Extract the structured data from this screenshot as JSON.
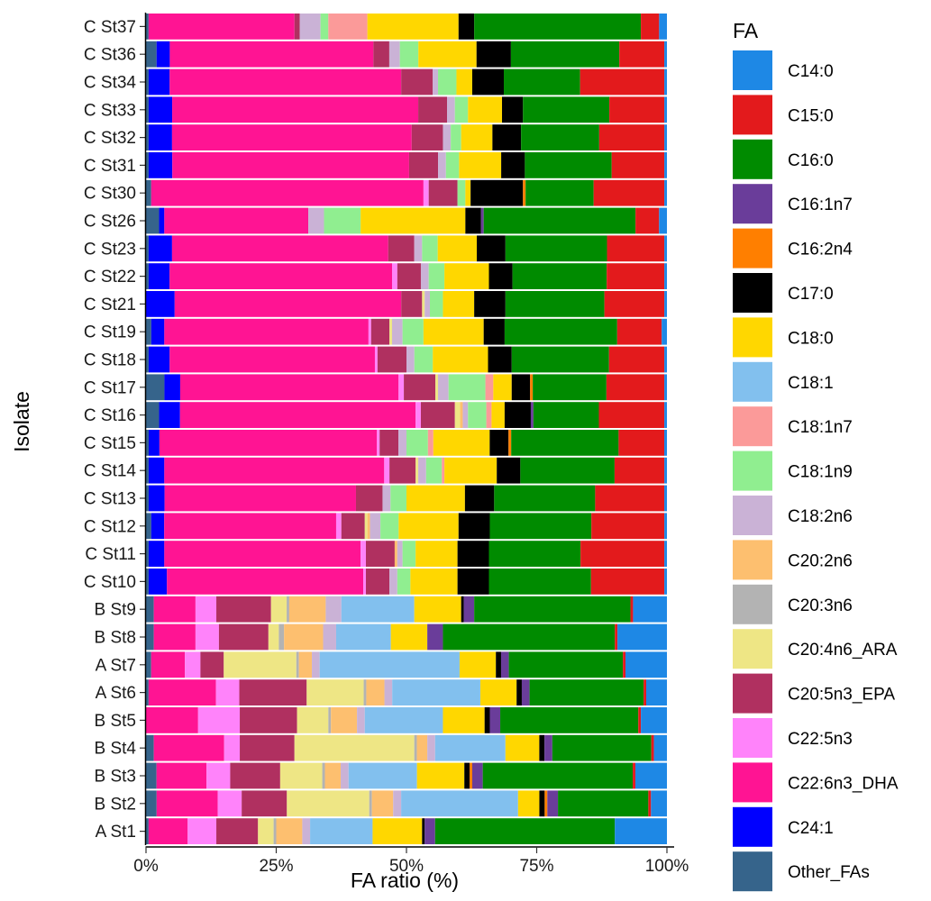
{
  "chart_data": {
    "type": "bar",
    "orientation": "horizontal",
    "stacked": true,
    "xlabel": "FA ratio (%)",
    "ylabel": "Isolate",
    "xlim": [
      0,
      100
    ],
    "x_ticks": [
      "0%",
      "25%",
      "50%",
      "75%",
      "100%"
    ],
    "x_tick_values": [
      0,
      25,
      50,
      75,
      100
    ],
    "legend_title": "FA",
    "legend_position": "right",
    "grid": false,
    "categories": [
      "A St1",
      "B St2",
      "B St3",
      "B St4",
      "B St5",
      "A St6",
      "A St7",
      "B St8",
      "B St9",
      "C St10",
      "C St11",
      "C St12",
      "C St13",
      "C St14",
      "C St15",
      "C St16",
      "C St17",
      "C St18",
      "C St19",
      "C St21",
      "C St22",
      "C St23",
      "C St26",
      "C St30",
      "C St31",
      "C St32",
      "C St33",
      "C St34",
      "C St36",
      "C St37"
    ],
    "series_order": [
      "Other_FAs",
      "C24:1",
      "C22:6n3_DHA",
      "C22:5n3",
      "C20:5n3_EPA",
      "C20:4n6_ARA",
      "C20:3n6",
      "C20:2n6",
      "C18:2n6",
      "C18:1n9",
      "C18:1n7",
      "C18:1",
      "C18:0",
      "C17:0",
      "C16:2n4",
      "C16:1n7",
      "C16:0",
      "C15:0",
      "C14:0"
    ],
    "legend_order": [
      "C14:0",
      "C15:0",
      "C16:0",
      "C16:1n7",
      "C16:2n4",
      "C17:0",
      "C18:0",
      "C18:1",
      "C18:1n7",
      "C18:1n9",
      "C18:2n6",
      "C20:2n6",
      "C20:3n6",
      "C20:4n6_ARA",
      "C20:5n3_EPA",
      "C22:5n3",
      "C22:6n3_DHA",
      "C24:1",
      "Other_FAs"
    ],
    "colors": {
      "C14:0": "#1E88E5",
      "C15:0": "#E31A1C",
      "C16:0": "#008B00",
      "C16:1n7": "#6A3D9A",
      "C16:2n4": "#FF7F00",
      "C17:0": "#000000",
      "C18:0": "#FFD700",
      "C18:1": "#82C0EE",
      "C18:1n7": "#FB9A99",
      "C18:1n9": "#90EE90",
      "C18:2n6": "#CAB2D6",
      "C20:2n6": "#FDBF6F",
      "C20:3n6": "#B3B3B3",
      "C20:4n6_ARA": "#EEE685",
      "C20:5n3_EPA": "#B03060",
      "C22:5n3": "#FF83FA",
      "C22:6n3_DHA": "#FF1493",
      "C24:1": "#0000FF",
      "Other_FAs": "#36648B"
    },
    "rows": {
      "A St1": {
        "Other_FAs": 0.5,
        "C24:1": 0,
        "C22:6n3_DHA": 7.5,
        "C22:5n3": 5.5,
        "C20:5n3_EPA": 8,
        "C20:4n6_ARA": 3,
        "C20:3n6": 0.5,
        "C20:2n6": 5,
        "C18:2n6": 1.5,
        "C18:1n9": 0,
        "C18:1n7": 0,
        "C18:1": 12,
        "C18:0": 9.5,
        "C17:0": 0.5,
        "C16:2n4": 0,
        "C16:1n7": 2,
        "C16:0": 34.5,
        "C15:0": 0,
        "C14:0": 10
      },
      "B St2": {
        "Other_FAs": 2,
        "C24:1": 0,
        "C22:6n3_DHA": 11.5,
        "C22:5n3": 4.5,
        "C20:5n3_EPA": 8.5,
        "C20:4n6_ARA": 15.5,
        "C20:3n6": 0.5,
        "C20:2n6": 4,
        "C18:2n6": 1.5,
        "C18:1n9": 0,
        "C18:1n7": 0,
        "C18:1": 22,
        "C18:0": 4,
        "C17:0": 1,
        "C16:2n4": 0.5,
        "C16:1n7": 2,
        "C16:0": 17,
        "C15:0": 0.5,
        "C14:0": 3
      },
      "B St3": {
        "Other_FAs": 2,
        "C24:1": 0,
        "C22:6n3_DHA": 9.5,
        "C22:5n3": 4.5,
        "C20:5n3_EPA": 9.5,
        "C20:4n6_ARA": 8,
        "C20:3n6": 0.5,
        "C20:2n6": 3,
        "C18:2n6": 1.5,
        "C18:1n9": 0,
        "C18:1n7": 0,
        "C18:1": 13,
        "C18:0": 9,
        "C17:0": 1,
        "C16:2n4": 0.5,
        "C16:1n7": 2,
        "C16:0": 28.5,
        "C15:0": 0.5,
        "C14:0": 6
      },
      "B St4": {
        "Other_FAs": 1.5,
        "C24:1": 0,
        "C22:6n3_DHA": 13.5,
        "C22:5n3": 3,
        "C20:5n3_EPA": 10.5,
        "C20:4n6_ARA": 23,
        "C20:3n6": 0.5,
        "C20:2n6": 2,
        "C18:2n6": 1.5,
        "C18:1n9": 0,
        "C18:1n7": 0,
        "C18:1": 13.5,
        "C18:0": 6.5,
        "C17:0": 1,
        "C16:2n4": 0,
        "C16:1n7": 1.5,
        "C16:0": 19,
        "C15:0": 0.5,
        "C14:0": 2.5
      },
      "B St5": {
        "Other_FAs": 0,
        "C24:1": 0,
        "C22:6n3_DHA": 10,
        "C22:5n3": 8,
        "C20:5n3_EPA": 11,
        "C20:4n6_ARA": 6,
        "C20:3n6": 0.5,
        "C20:2n6": 5,
        "C18:2n6": 1.5,
        "C18:1n9": 0,
        "C18:1n7": 0,
        "C18:1": 15,
        "C18:0": 8,
        "C17:0": 1,
        "C16:2n4": 0,
        "C16:1n7": 2,
        "C16:0": 26.5,
        "C15:0": 0.5,
        "C14:0": 5
      },
      "A St6": {
        "Other_FAs": 0.5,
        "C24:1": 0,
        "C22:6n3_DHA": 13,
        "C22:5n3": 4.5,
        "C20:5n3_EPA": 13,
        "C20:4n6_ARA": 11,
        "C20:3n6": 0.5,
        "C20:2n6": 3.5,
        "C18:2n6": 1.5,
        "C18:1n9": 0,
        "C18:1n7": 0,
        "C18:1": 17,
        "C18:0": 7,
        "C17:0": 1,
        "C16:2n4": 0,
        "C16:1n7": 1.5,
        "C16:0": 22,
        "C15:0": 0.5,
        "C14:0": 4
      },
      "A St7": {
        "Other_FAs": 1,
        "C24:1": 0,
        "C22:6n3_DHA": 6.5,
        "C22:5n3": 3,
        "C20:5n3_EPA": 4.5,
        "C20:4n6_ARA": 14,
        "C20:3n6": 0.5,
        "C20:2n6": 2.5,
        "C18:2n6": 1.5,
        "C18:1n9": 0,
        "C18:1n7": 0,
        "C18:1": 27,
        "C18:0": 7,
        "C17:0": 1,
        "C16:2n4": 0,
        "C16:1n7": 1.5,
        "C16:0": 22,
        "C15:0": 0.5,
        "C14:0": 8
      },
      "B St8": {
        "Other_FAs": 1.5,
        "C24:1": 0,
        "C22:6n3_DHA": 8,
        "C22:5n3": 4.5,
        "C20:5n3_EPA": 9.5,
        "C20:4n6_ARA": 2,
        "C20:3n6": 1,
        "C20:2n6": 7.5,
        "C18:2n6": 2.5,
        "C18:1n9": 0,
        "C18:1n7": 0,
        "C18:1": 10.5,
        "C18:0": 7,
        "C17:0": 0,
        "C16:2n4": 0,
        "C16:1n7": 3,
        "C16:0": 33,
        "C15:0": 0.5,
        "C14:0": 9.5
      },
      "B St9": {
        "Other_FAs": 1.5,
        "C24:1": 0,
        "C22:6n3_DHA": 8,
        "C22:5n3": 4,
        "C20:5n3_EPA": 10.5,
        "C20:4n6_ARA": 3,
        "C20:3n6": 0.5,
        "C20:2n6": 7,
        "C18:2n6": 3,
        "C18:1n9": 0,
        "C18:1n7": 0,
        "C18:1": 14,
        "C18:0": 9,
        "C17:0": 0.5,
        "C16:2n4": 0,
        "C16:1n7": 2,
        "C16:0": 30,
        "C15:0": 0.5,
        "C14:0": 6.5
      },
      "C St10": {
        "Other_FAs": 0.5,
        "C24:1": 3.5,
        "C22:6n3_DHA": 37.5,
        "C22:5n3": 0.5,
        "C20:5n3_EPA": 4.5,
        "C20:4n6_ARA": 0,
        "C20:3n6": 0,
        "C20:2n6": 0,
        "C18:2n6": 1.5,
        "C18:1n9": 2.5,
        "C18:1n7": 0,
        "C18:1": 0,
        "C18:0": 9,
        "C17:0": 6,
        "C16:2n4": 0,
        "C16:1n7": 0,
        "C16:0": 19.5,
        "C15:0": 14,
        "C14:0": 0.5
      },
      "C St11": {
        "Other_FAs": 0.5,
        "C24:1": 3,
        "C22:6n3_DHA": 37.5,
        "C22:5n3": 1,
        "C20:5n3_EPA": 5.5,
        "C20:4n6_ARA": 0,
        "C20:3n6": 0,
        "C20:2n6": 0.5,
        "C18:2n6": 1,
        "C18:1n9": 2.5,
        "C18:1n7": 0,
        "C18:1": 0,
        "C18:0": 8,
        "C17:0": 6,
        "C16:2n4": 0,
        "C16:1n7": 0,
        "C16:0": 17.5,
        "C15:0": 16,
        "C14:0": 0.5
      },
      "C St12": {
        "Other_FAs": 1,
        "C24:1": 2.5,
        "C22:6n3_DHA": 33,
        "C22:5n3": 1,
        "C20:5n3_EPA": 4.5,
        "C20:4n6_ARA": 0.5,
        "C20:3n6": 0,
        "C20:2n6": 0.5,
        "C18:2n6": 2,
        "C18:1n9": 3.5,
        "C18:1n7": 0,
        "C18:1": 0,
        "C18:0": 11.5,
        "C17:0": 6,
        "C16:2n4": 0,
        "C16:1n7": 0,
        "C16:0": 19.5,
        "C15:0": 14,
        "C14:0": 0.5
      },
      "C St13": {
        "Other_FAs": 0.5,
        "C24:1": 3,
        "C22:6n3_DHA": 36,
        "C22:5n3": 0,
        "C20:5n3_EPA": 5,
        "C20:4n6_ARA": 0,
        "C20:3n6": 0,
        "C20:2n6": 0,
        "C18:2n6": 1.5,
        "C18:1n9": 3,
        "C18:1n7": 0,
        "C18:1": 0,
        "C18:0": 11,
        "C17:0": 5.5,
        "C16:2n4": 0,
        "C16:1n7": 0,
        "C16:0": 19,
        "C15:0": 13,
        "C14:0": 0.5
      },
      "C St14": {
        "Other_FAs": 0.5,
        "C24:1": 3,
        "C22:6n3_DHA": 42,
        "C22:5n3": 1,
        "C20:5n3_EPA": 5,
        "C20:4n6_ARA": 0.5,
        "C20:3n6": 0,
        "C20:2n6": 0,
        "C18:2n6": 1.5,
        "C18:1n9": 3,
        "C18:1n7": 0.5,
        "C18:1": 0,
        "C18:0": 10,
        "C17:0": 4.5,
        "C16:2n4": 0,
        "C16:1n7": 0,
        "C16:0": 18,
        "C15:0": 9.5,
        "C14:0": 0.5
      },
      "C St15": {
        "Other_FAs": 0.5,
        "C24:1": 2,
        "C22:6n3_DHA": 40.5,
        "C22:5n3": 0.5,
        "C20:5n3_EPA": 3.5,
        "C20:4n6_ARA": 0,
        "C20:3n6": 0,
        "C20:2n6": 0,
        "C18:2n6": 1.5,
        "C18:1n9": 4,
        "C18:1n7": 1,
        "C18:1": 0,
        "C18:0": 10.5,
        "C17:0": 3.5,
        "C16:2n4": 0.5,
        "C16:1n7": 0,
        "C16:0": 20,
        "C15:0": 8.5,
        "C14:0": 0.5
      },
      "C St16": {
        "Other_FAs": 2.5,
        "C24:1": 4,
        "C22:6n3_DHA": 45,
        "C22:5n3": 1,
        "C20:5n3_EPA": 6.5,
        "C20:4n6_ARA": 1,
        "C20:3n6": 0,
        "C20:2n6": 0.5,
        "C18:2n6": 1,
        "C18:1n9": 3.5,
        "C18:1n7": 1,
        "C18:1": 0,
        "C18:0": 2.5,
        "C17:0": 5,
        "C16:2n4": 0,
        "C16:1n7": 0.5,
        "C16:0": 12.5,
        "C15:0": 12.5,
        "C14:0": 0.5
      },
      "C St17": {
        "Other_FAs": 3.5,
        "C24:1": 3,
        "C22:6n3_DHA": 41.5,
        "C22:5n3": 1,
        "C20:5n3_EPA": 6,
        "C20:4n6_ARA": 0.5,
        "C20:3n6": 0,
        "C20:2n6": 0,
        "C18:2n6": 2,
        "C18:1n9": 7,
        "C18:1n7": 1.5,
        "C18:1": 0,
        "C18:0": 3.5,
        "C17:0": 3.5,
        "C16:2n4": 0.5,
        "C16:1n7": 0,
        "C16:0": 14,
        "C15:0": 11,
        "C14:0": 0.5
      },
      "C St18": {
        "Other_FAs": 0.5,
        "C24:1": 4,
        "C22:6n3_DHA": 39,
        "C22:5n3": 0.5,
        "C20:5n3_EPA": 5.5,
        "C20:4n6_ARA": 0,
        "C20:3n6": 0,
        "C20:2n6": 0,
        "C18:2n6": 1.5,
        "C18:1n9": 3.5,
        "C18:1n7": 0,
        "C18:1": 0,
        "C18:0": 10.5,
        "C17:0": 4.5,
        "C16:2n4": 0,
        "C16:1n7": 0,
        "C16:0": 18.5,
        "C15:0": 10.5,
        "C14:0": 0.5
      },
      "C St19": {
        "Other_FAs": 1,
        "C24:1": 2.5,
        "C22:6n3_DHA": 39,
        "C22:5n3": 0.5,
        "C20:5n3_EPA": 3.5,
        "C20:4n6_ARA": 0.5,
        "C20:3n6": 0,
        "C20:2n6": 0,
        "C18:2n6": 2,
        "C18:1n9": 4,
        "C18:1n7": 0,
        "C18:1": 0,
        "C18:0": 11.5,
        "C17:0": 4,
        "C16:2n4": 0,
        "C16:1n7": 0,
        "C16:0": 21.5,
        "C15:0": 8.5,
        "C14:0": 1
      },
      "C St21": {
        "Other_FAs": 0,
        "C24:1": 5.5,
        "C22:6n3_DHA": 43.5,
        "C22:5n3": 0,
        "C20:5n3_EPA": 4,
        "C20:4n6_ARA": 0.5,
        "C20:3n6": 0,
        "C20:2n6": 0,
        "C18:2n6": 1,
        "C18:1n9": 2.5,
        "C18:1n7": 0,
        "C18:1": 0,
        "C18:0": 6,
        "C17:0": 6,
        "C16:2n4": 0,
        "C16:1n7": 0,
        "C16:0": 19,
        "C15:0": 11.5,
        "C14:0": 0.5
      },
      "C St22": {
        "Other_FAs": 0.5,
        "C24:1": 4,
        "C22:6n3_DHA": 42.5,
        "C22:5n3": 1,
        "C20:5n3_EPA": 4.5,
        "C20:4n6_ARA": 0,
        "C20:3n6": 0,
        "C20:2n6": 0,
        "C18:2n6": 1.5,
        "C18:1n9": 3,
        "C18:1n7": 0,
        "C18:1": 0,
        "C18:0": 8.5,
        "C17:0": 4.5,
        "C16:2n4": 0,
        "C16:1n7": 0,
        "C16:0": 18,
        "C15:0": 11,
        "C14:0": 0.5
      },
      "C St23": {
        "Other_FAs": 0.5,
        "C24:1": 4.5,
        "C22:6n3_DHA": 41.5,
        "C22:5n3": 0,
        "C20:5n3_EPA": 5,
        "C20:4n6_ARA": 0,
        "C20:3n6": 0,
        "C20:2n6": 0,
        "C18:2n6": 1.5,
        "C18:1n9": 3,
        "C18:1n7": 0,
        "C18:1": 0,
        "C18:0": 7.5,
        "C17:0": 5.5,
        "C16:2n4": 0,
        "C16:1n7": 0,
        "C16:0": 19.5,
        "C15:0": 11,
        "C14:0": 0.5
      },
      "C St26": {
        "Other_FAs": 2.5,
        "C24:1": 1,
        "C22:6n3_DHA": 27.5,
        "C22:5n3": 0,
        "C20:5n3_EPA": 0,
        "C20:4n6_ARA": 0,
        "C20:3n6": 0,
        "C20:2n6": 0,
        "C18:2n6": 3,
        "C18:1n9": 7,
        "C18:1n7": 0,
        "C18:1": 0,
        "C18:0": 20,
        "C17:0": 3,
        "C16:2n4": 0,
        "C16:1n7": 0.5,
        "C16:0": 29,
        "C15:0": 4.5,
        "C14:0": 1.5
      },
      "C St30": {
        "Other_FAs": 1,
        "C24:1": 0,
        "C22:6n3_DHA": 52,
        "C22:5n3": 1,
        "C20:5n3_EPA": 5.5,
        "C20:4n6_ARA": 0,
        "C20:3n6": 0,
        "C20:2n6": 0,
        "C18:2n6": 0,
        "C18:1n9": 1.5,
        "C18:1n7": 0,
        "C18:1": 0,
        "C18:0": 1,
        "C17:0": 10,
        "C16:2n4": 0.5,
        "C16:1n7": 0,
        "C16:0": 13,
        "C15:0": 13.5,
        "C14:0": 0.5
      },
      "C St31": {
        "Other_FAs": 0.5,
        "C24:1": 4.5,
        "C22:6n3_DHA": 45,
        "C22:5n3": 0,
        "C20:5n3_EPA": 5.5,
        "C20:4n6_ARA": 0,
        "C20:3n6": 0,
        "C20:2n6": 0,
        "C18:2n6": 1.5,
        "C18:1n9": 2.5,
        "C18:1n7": 0,
        "C18:1": 0,
        "C18:0": 8,
        "C17:0": 4.5,
        "C16:2n4": 0,
        "C16:1n7": 0,
        "C16:0": 16.5,
        "C15:0": 10,
        "C14:0": 0.5
      },
      "C St32": {
        "Other_FAs": 0.5,
        "C24:1": 4.5,
        "C22:6n3_DHA": 46,
        "C22:5n3": 0,
        "C20:5n3_EPA": 6,
        "C20:4n6_ARA": 0,
        "C20:3n6": 0,
        "C20:2n6": 0,
        "C18:2n6": 1.5,
        "C18:1n9": 2,
        "C18:1n7": 0,
        "C18:1": 0,
        "C18:0": 6,
        "C17:0": 5.5,
        "C16:2n4": 0,
        "C16:1n7": 0,
        "C16:0": 15,
        "C15:0": 12.5,
        "C14:0": 0.5
      },
      "C St33": {
        "Other_FAs": 0.5,
        "C24:1": 4.5,
        "C22:6n3_DHA": 47,
        "C22:5n3": 0,
        "C20:5n3_EPA": 5.5,
        "C20:4n6_ARA": 0,
        "C20:3n6": 0,
        "C20:2n6": 0,
        "C18:2n6": 1.5,
        "C18:1n9": 2.5,
        "C18:1n7": 0,
        "C18:1": 0,
        "C18:0": 6.5,
        "C17:0": 4,
        "C16:2n4": 0,
        "C16:1n7": 0,
        "C16:0": 16.5,
        "C15:0": 10.5,
        "C14:0": 0.5
      },
      "C St34": {
        "Other_FAs": 0.5,
        "C24:1": 4,
        "C22:6n3_DHA": 44,
        "C22:5n3": 0,
        "C20:5n3_EPA": 6,
        "C20:4n6_ARA": 0,
        "C20:3n6": 0,
        "C20:2n6": 0,
        "C18:2n6": 1,
        "C18:1n9": 3.5,
        "C18:1n7": 0,
        "C18:1": 0,
        "C18:0": 3,
        "C17:0": 6,
        "C16:2n4": 0,
        "C16:1n7": 0,
        "C16:0": 14.5,
        "C15:0": 16,
        "C14:0": 0.5
      },
      "C St36": {
        "Other_FAs": 2,
        "C24:1": 2.5,
        "C22:6n3_DHA": 38.5,
        "C22:5n3": 0,
        "C20:5n3_EPA": 3,
        "C20:4n6_ARA": 0,
        "C20:3n6": 0,
        "C20:2n6": 0,
        "C18:2n6": 2,
        "C18:1n9": 3.5,
        "C18:1n7": 0,
        "C18:1": 0,
        "C18:0": 11,
        "C17:0": 6.5,
        "C16:2n4": 0,
        "C16:1n7": 0,
        "C16:0": 20.5,
        "C15:0": 8.5,
        "C14:0": 0.5
      },
      "C St37": {
        "Other_FAs": 0.5,
        "C24:1": 0,
        "C22:6n3_DHA": 28,
        "C22:5n3": 0,
        "C20:5n3_EPA": 1,
        "C20:4n6_ARA": 0,
        "C20:3n6": 0,
        "C20:2n6": 0,
        "C18:2n6": 4,
        "C18:1n9": 1.5,
        "C18:1n7": 7.5,
        "C18:1": 0,
        "C18:0": 17.5,
        "C17:0": 3,
        "C16:2n4": 0,
        "C16:1n7": 0,
        "C16:0": 32,
        "C15:0": 3.5,
        "C14:0": 1.5
      }
    }
  }
}
